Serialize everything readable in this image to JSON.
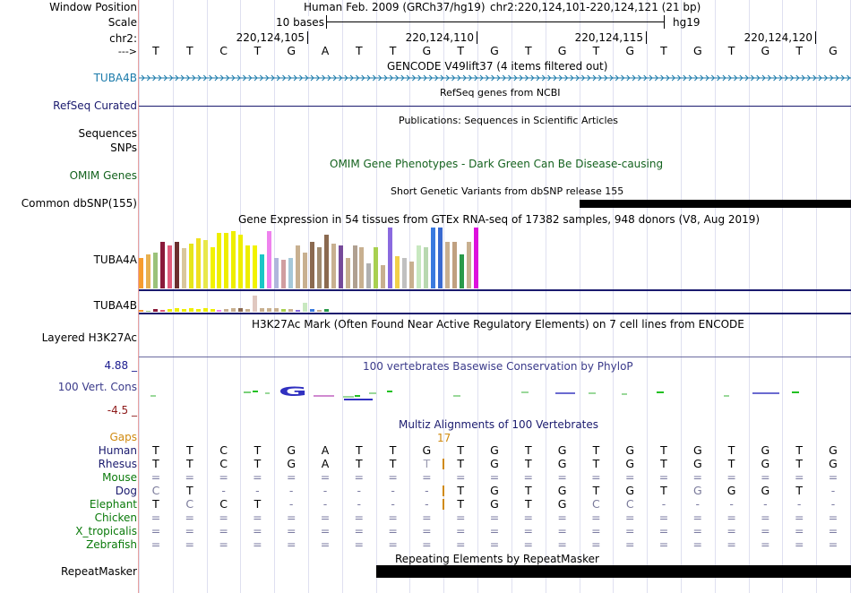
{
  "rows": {
    "window_position": "Window Position",
    "scale": "Scale",
    "chr": "chr2:",
    "strand": "--->",
    "tuba4b_gencode": "TUBA4B",
    "refseq": "RefSeq Curated",
    "sequences": "Sequences",
    "snps": "SNPs",
    "omim": "OMIM Genes",
    "common_dbsnp": "Common dbSNP(155)",
    "tuba4a": "TUBA4A",
    "tuba4b_expr": "TUBA4B",
    "layered_h3k27ac": "Layered H3K27Ac",
    "cons_max": "4.88 _",
    "cons_label": "100 Vert. Cons",
    "cons_min": "-4.5 _",
    "gaps": "Gaps",
    "repeatmasker": "RepeatMasker"
  },
  "header": {
    "assembly": "Human Feb. 2009 (GRCh37/hg19)",
    "position": "chr2:220,124,101-220,124,121 (21 bp)",
    "scale_text": "10 bases",
    "db": "hg19",
    "coords": [
      "220,124,105",
      "220,124,110",
      "220,124,115",
      "220,124,120"
    ]
  },
  "sequence": [
    "T",
    "T",
    "C",
    "T",
    "G",
    "A",
    "T",
    "T",
    "G",
    "T",
    "G",
    "T",
    "G",
    "T",
    "G",
    "T",
    "G",
    "T",
    "G",
    "T",
    "G"
  ],
  "tracks": {
    "gencode": "GENCODE V49lift37 (4 items filtered out)",
    "refseq": "RefSeq genes from NCBI",
    "publications": "Publications: Sequences in Scientific Articles",
    "omim": "OMIM Gene Phenotypes - Dark Green Can Be Disease-causing",
    "dbsnp": "Short Genetic Variants from dbSNP release 155",
    "gtex": "Gene Expression in 54 tissues from GTEx RNA-seq of 17382 samples, 948 donors (V8, Aug 2019)",
    "h3k27ac": "H3K27Ac Mark (Often Found Near Active Regulatory Elements) on 7 cell lines from ENCODE",
    "phylop": "100 vertebrates Basewise Conservation by PhyloP",
    "multiz": "Multiz Alignments of 100 Vertebrates",
    "repeatmasker": "Repeating Elements by RepeatMasker"
  },
  "gap_count": "17",
  "species": [
    {
      "name": "Human",
      "seq": [
        "T",
        "T",
        "C",
        "T",
        "G",
        "A",
        "T",
        "T",
        "G",
        "T",
        "G",
        "T",
        "G",
        "T",
        "G",
        "T",
        "G",
        "T",
        "G",
        "T",
        "G"
      ]
    },
    {
      "name": "Rhesus",
      "seq": [
        "T",
        "T",
        "C",
        "T",
        "G",
        "A",
        "T",
        "T",
        "T",
        "T",
        "G",
        "T",
        "G",
        "T",
        "G",
        "T",
        "G",
        "T",
        "G",
        "T",
        "G"
      ]
    },
    {
      "name": "Mouse",
      "seq": [
        "=",
        "=",
        "=",
        "=",
        "=",
        "=",
        "=",
        "=",
        "=",
        "=",
        "=",
        "=",
        "=",
        "=",
        "=",
        "=",
        "=",
        "=",
        "=",
        "=",
        "="
      ]
    },
    {
      "name": "Dog",
      "seq": [
        "C",
        "T",
        "-",
        "-",
        "-",
        "-",
        "-",
        "-",
        "-",
        "T",
        "G",
        "T",
        "G",
        "T",
        "G",
        "T",
        "G",
        "G",
        "G",
        "T",
        "-"
      ]
    },
    {
      "name": "Elephant",
      "seq": [
        "T",
        "C",
        "C",
        "T",
        "-",
        "-",
        "-",
        "-",
        "-",
        "T",
        "G",
        "T",
        "G",
        "C",
        "C",
        "-",
        "-",
        "-",
        "-",
        "-",
        "-"
      ]
    },
    {
      "name": "Chicken",
      "seq": [
        "=",
        "=",
        "=",
        "=",
        "=",
        "=",
        "=",
        "=",
        "=",
        "=",
        "=",
        "=",
        "=",
        "=",
        "=",
        "=",
        "=",
        "=",
        "=",
        "=",
        "="
      ]
    },
    {
      "name": "X_tropicalis",
      "seq": [
        "=",
        "=",
        "=",
        "=",
        "=",
        "=",
        "=",
        "=",
        "=",
        "=",
        "=",
        "=",
        "=",
        "=",
        "=",
        "=",
        "=",
        "=",
        "=",
        "=",
        "="
      ]
    },
    {
      "name": "Zebrafish",
      "seq": [
        "=",
        "=",
        "=",
        "=",
        "=",
        "=",
        "=",
        "=",
        "=",
        "=",
        "=",
        "=",
        "=",
        "=",
        "=",
        "=",
        "=",
        "=",
        "=",
        "=",
        "="
      ]
    }
  ],
  "gtex_tuba4a": [
    {
      "h": 34,
      "c": "#f79c2e"
    },
    {
      "h": 38,
      "c": "#e8b04f"
    },
    {
      "h": 40,
      "c": "#9bc27a"
    },
    {
      "h": 52,
      "c": "#8b1a3a"
    },
    {
      "h": 48,
      "c": "#e05a7a"
    },
    {
      "h": 52,
      "c": "#6b2e2e"
    },
    {
      "h": 45,
      "c": "#d9c79c"
    },
    {
      "h": 50,
      "c": "#e6e61a"
    },
    {
      "h": 56,
      "c": "#f0e020"
    },
    {
      "h": 54,
      "c": "#e8e84a"
    },
    {
      "h": 46,
      "c": "#f2f200"
    },
    {
      "h": 62,
      "c": "#eeee00"
    },
    {
      "h": 62,
      "c": "#eeee00"
    },
    {
      "h": 64,
      "c": "#eeee00"
    },
    {
      "h": 60,
      "c": "#eeee00"
    },
    {
      "h": 48,
      "c": "#eeee00"
    },
    {
      "h": 48,
      "c": "#f2f200"
    },
    {
      "h": 38,
      "c": "#1ac6c6"
    },
    {
      "h": 64,
      "c": "#ee82ee"
    },
    {
      "h": 34,
      "c": "#b0b6dc"
    },
    {
      "h": 32,
      "c": "#d09ea0"
    },
    {
      "h": 34,
      "c": "#a6c8d8"
    },
    {
      "h": 48,
      "c": "#c8b090"
    },
    {
      "h": 40,
      "c": "#c8b090"
    },
    {
      "h": 52,
      "c": "#8b6a50"
    },
    {
      "h": 46,
      "c": "#a08a6e"
    },
    {
      "h": 60,
      "c": "#8b6a50"
    },
    {
      "h": 50,
      "c": "#c8b090"
    },
    {
      "h": 48,
      "c": "#764a9a"
    },
    {
      "h": 34,
      "c": "#c8b090"
    },
    {
      "h": 48,
      "c": "#b0a090"
    },
    {
      "h": 46,
      "c": "#c8b090"
    },
    {
      "h": 28,
      "c": "#b0b0b0"
    },
    {
      "h": 46,
      "c": "#a8d050"
    },
    {
      "h": 26,
      "c": "#c8b090"
    },
    {
      "h": 68,
      "c": "#8a6adf"
    },
    {
      "h": 36,
      "c": "#f2d04a"
    },
    {
      "h": 34,
      "c": "#c0c0c0"
    },
    {
      "h": 30,
      "c": "#c8b090"
    },
    {
      "h": 48,
      "c": "#c8e8c0"
    },
    {
      "h": 46,
      "c": "#b8d8b0"
    },
    {
      "h": 68,
      "c": "#3a7adf"
    },
    {
      "h": 68,
      "c": "#3a6ad0"
    },
    {
      "h": 52,
      "c": "#c8b090"
    },
    {
      "h": 52,
      "c": "#c0a080"
    },
    {
      "h": 38,
      "c": "#2a9a4a"
    },
    {
      "h": 52,
      "c": "#c8b090"
    },
    {
      "h": 68,
      "c": "#dd10dd"
    }
  ],
  "gtex_tuba4b": [
    {
      "h": 2,
      "c": "#f79c2e"
    },
    {
      "h": 1,
      "c": "#9bc27a"
    },
    {
      "h": 3,
      "c": "#8b1a3a"
    },
    {
      "h": 2,
      "c": "#e05a7a"
    },
    {
      "h": 3,
      "c": "#eeee00"
    },
    {
      "h": 4,
      "c": "#eeee00"
    },
    {
      "h": 3,
      "c": "#eeee00"
    },
    {
      "h": 4,
      "c": "#eeee00"
    },
    {
      "h": 3,
      "c": "#eeee00"
    },
    {
      "h": 4,
      "c": "#eeee00"
    },
    {
      "h": 3,
      "c": "#eeee00"
    },
    {
      "h": 2,
      "c": "#ee82ee"
    },
    {
      "h": 3,
      "c": "#c8b090"
    },
    {
      "h": 4,
      "c": "#c8b090"
    },
    {
      "h": 4,
      "c": "#8b6a50"
    },
    {
      "h": 3,
      "c": "#c8b090"
    },
    {
      "h": 18,
      "c": "#e0c8c0"
    },
    {
      "h": 4,
      "c": "#c8b090"
    },
    {
      "h": 4,
      "c": "#c8b090"
    },
    {
      "h": 4,
      "c": "#c8b090"
    },
    {
      "h": 3,
      "c": "#a8d050"
    },
    {
      "h": 3,
      "c": "#c8b090"
    },
    {
      "h": 2,
      "c": "#8a6adf"
    },
    {
      "h": 10,
      "c": "#c8e8c0"
    },
    {
      "h": 3,
      "c": "#3a7adf"
    },
    {
      "h": 2,
      "c": "#c8b090"
    },
    {
      "h": 3,
      "c": "#2a9a4a"
    }
  ],
  "colors": {
    "gencode": "#1a7aaa",
    "navy": "#1a1a6e",
    "omim": "#14621e",
    "phylop_title": "#3a3a8a",
    "cons_max": "#1a1a8e",
    "cons_min": "#8e1a1a",
    "gaps": "#d08a10",
    "species": "#1a1a6e",
    "mouse": "#0a7a0a"
  }
}
